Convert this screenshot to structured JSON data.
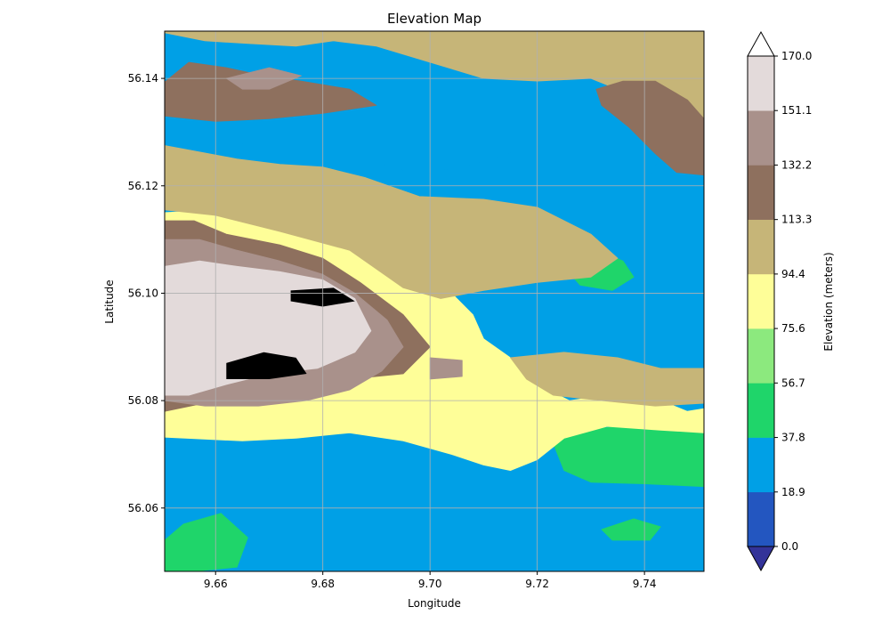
{
  "chart_data": {
    "type": "contour",
    "title": "Elevation Map",
    "xlabel": "Longitude",
    "ylabel": "Latitude",
    "xlim": [
      9.6505,
      9.7511
    ],
    "ylim": [
      56.0482,
      56.1488
    ],
    "x_ticks": [
      {
        "value": 9.66,
        "label": "9.66"
      },
      {
        "value": 9.68,
        "label": "9.68"
      },
      {
        "value": 9.7,
        "label": "9.70"
      },
      {
        "value": 9.72,
        "label": "9.72"
      },
      {
        "value": 9.74,
        "label": "9.74"
      }
    ],
    "y_ticks": [
      {
        "value": 56.06,
        "label": "56.06"
      },
      {
        "value": 56.08,
        "label": "56.08"
      },
      {
        "value": 56.1,
        "label": "56.10"
      },
      {
        "value": 56.12,
        "label": "56.12"
      },
      {
        "value": 56.14,
        "label": "56.14"
      }
    ],
    "grid": true,
    "colorbar": {
      "label": "Elevation (meters)",
      "levels": [
        0.0,
        18.9,
        37.8,
        56.7,
        75.6,
        94.4,
        113.3,
        132.2,
        151.1,
        170.0
      ],
      "tick_labels": [
        "0.0",
        "18.9",
        "37.8",
        "56.7",
        "75.6",
        "94.4",
        "113.3",
        "132.2",
        "151.1",
        "170.0"
      ],
      "colors": [
        "#2356c0",
        "#00a0e6",
        "#1fd56a",
        "#8ce97e",
        "#fefe98",
        "#c6b578",
        "#8e705e",
        "#a9918b",
        "#e3dada"
      ],
      "under_color": "#333399",
      "over_color": "#ffffff",
      "extend": "both"
    },
    "regions": [
      {
        "band": 1,
        "pts": [
          [
            9.6505,
            56.1288
          ],
          [
            9.654,
            56.13
          ],
          [
            9.662,
            56.1283
          ],
          [
            9.672,
            56.127
          ],
          [
            9.68,
            56.1275
          ],
          [
            9.688,
            56.125
          ],
          [
            9.698,
            56.122
          ],
          [
            9.708,
            56.124
          ],
          [
            9.718,
            56.127
          ],
          [
            9.73,
            56.129
          ],
          [
            9.74,
            56.1283
          ],
          [
            9.743,
            56.1255
          ],
          [
            9.74,
            56.1195
          ],
          [
            9.73,
            56.117
          ],
          [
            9.724,
            56.1135
          ],
          [
            9.72,
            56.1085
          ],
          [
            9.718,
            56.104
          ],
          [
            9.722,
            56.102
          ],
          [
            9.73,
            56.103
          ],
          [
            9.74,
            56.104
          ],
          [
            9.7511,
            56.1045
          ],
          [
            9.7511,
            56.0895
          ],
          [
            9.74,
            56.0905
          ],
          [
            9.73,
            56.0925
          ],
          [
            9.723,
            56.0935
          ],
          [
            9.712,
            56.096
          ],
          [
            9.7,
            56.104
          ],
          [
            9.695,
            56.108
          ],
          [
            9.685,
            56.112
          ],
          [
            9.678,
            56.1145
          ],
          [
            9.67,
            56.1155
          ],
          [
            9.66,
            56.117
          ],
          [
            9.6505,
            56.117
          ]
        ]
      },
      {
        "band": 1,
        "pts": [
          [
            9.6505,
            56.065
          ],
          [
            9.66,
            56.066
          ],
          [
            9.67,
            56.0655
          ],
          [
            9.68,
            56.064
          ],
          [
            9.69,
            56.0615
          ],
          [
            9.7,
            56.059
          ],
          [
            9.71,
            56.059
          ],
          [
            9.72,
            56.061
          ],
          [
            9.73,
            56.062
          ],
          [
            9.74,
            56.063
          ],
          [
            9.7511,
            56.063
          ],
          [
            9.7511,
            56.0482
          ],
          [
            9.6505,
            56.0482
          ]
        ]
      },
      {
        "band": 2,
        "pts": [
          [
            9.7285,
            56.0745
          ],
          [
            9.735,
            56.0752
          ],
          [
            9.744,
            56.0755
          ],
          [
            9.748,
            56.0748
          ],
          [
            9.7511,
            56.0752
          ],
          [
            9.7511,
            56.064
          ],
          [
            9.74,
            56.0645
          ],
          [
            9.73,
            56.0648
          ],
          [
            9.725,
            56.067
          ],
          [
            9.723,
            56.072
          ]
        ]
      },
      {
        "band": 2,
        "pts": [
          [
            9.724,
            56.106
          ],
          [
            9.73,
            56.1085
          ],
          [
            9.736,
            56.106
          ],
          [
            9.738,
            56.103
          ],
          [
            9.734,
            56.1005
          ],
          [
            9.728,
            56.1015
          ]
        ]
      },
      {
        "band": 2,
        "pts": [
          [
            9.6505,
            56.054
          ],
          [
            9.654,
            56.057
          ],
          [
            9.661,
            56.059
          ],
          [
            9.666,
            56.0545
          ],
          [
            9.664,
            56.049
          ],
          [
            9.656,
            56.0482
          ],
          [
            9.6505,
            56.0482
          ]
        ]
      },
      {
        "band": 2,
        "pts": [
          [
            9.732,
            56.056
          ],
          [
            9.738,
            56.058
          ],
          [
            9.743,
            56.0565
          ],
          [
            9.741,
            56.054
          ],
          [
            9.734,
            56.054
          ]
        ]
      },
      {
        "band": 4,
        "pts": [
          [
            9.6505,
            56.1487
          ],
          [
            9.656,
            56.1487
          ],
          [
            9.664,
            56.1478
          ],
          [
            9.672,
            56.147
          ],
          [
            9.679,
            56.1488
          ],
          [
            9.6505,
            56.1488
          ]
        ]
      },
      {
        "band": 4,
        "pts": [
          [
            9.6505,
            56.115
          ],
          [
            9.66,
            56.1155
          ],
          [
            9.67,
            56.114
          ],
          [
            9.68,
            56.1125
          ],
          [
            9.688,
            56.1095
          ],
          [
            9.696,
            56.106
          ],
          [
            9.703,
            56.101
          ],
          [
            9.708,
            56.096
          ],
          [
            9.71,
            56.0915
          ],
          [
            9.715,
            56.088
          ],
          [
            9.72,
            56.083
          ],
          [
            9.726,
            56.08
          ],
          [
            9.733,
            56.081
          ],
          [
            9.743,
            56.08
          ],
          [
            9.748,
            56.078
          ],
          [
            9.7511,
            56.0785
          ],
          [
            9.7511,
            56.074
          ],
          [
            9.743,
            56.0745
          ],
          [
            9.733,
            56.0752
          ],
          [
            9.725,
            56.073
          ],
          [
            9.72,
            56.069
          ],
          [
            9.715,
            56.067
          ],
          [
            9.71,
            56.068
          ],
          [
            9.704,
            56.07
          ],
          [
            9.695,
            56.0725
          ],
          [
            9.685,
            56.074
          ],
          [
            9.675,
            56.073
          ],
          [
            9.665,
            56.0725
          ],
          [
            9.6505,
            56.0732
          ]
        ]
      },
      {
        "band": 5,
        "pts": [
          [
            9.6505,
            56.1275
          ],
          [
            9.656,
            56.1265
          ],
          [
            9.664,
            56.125
          ],
          [
            9.672,
            56.124
          ],
          [
            9.68,
            56.1235
          ],
          [
            9.688,
            56.1215
          ],
          [
            9.698,
            56.118
          ],
          [
            9.71,
            56.1175
          ],
          [
            9.72,
            56.116
          ],
          [
            9.73,
            56.111
          ],
          [
            9.735,
            56.1065
          ],
          [
            9.73,
            56.103
          ],
          [
            9.72,
            56.102
          ],
          [
            9.71,
            56.1005
          ],
          [
            9.702,
            56.099
          ],
          [
            9.695,
            56.101
          ],
          [
            9.685,
            56.108
          ],
          [
            9.672,
            56.1115
          ],
          [
            9.66,
            56.1145
          ],
          [
            9.6505,
            56.1155
          ]
        ]
      },
      {
        "band": 5,
        "pts": [
          [
            9.715,
            56.088
          ],
          [
            9.725,
            56.089
          ],
          [
            9.735,
            56.088
          ],
          [
            9.743,
            56.086
          ],
          [
            9.7511,
            56.086
          ],
          [
            9.7511,
            56.0795
          ],
          [
            9.742,
            56.079
          ],
          [
            9.732,
            56.08
          ],
          [
            9.723,
            56.081
          ],
          [
            9.718,
            56.084
          ]
        ]
      },
      {
        "band": 5,
        "pts": [
          [
            9.6505,
            56.1485
          ],
          [
            9.658,
            56.147
          ],
          [
            9.666,
            56.1465
          ],
          [
            9.675,
            56.146
          ],
          [
            9.682,
            56.147
          ],
          [
            9.69,
            56.146
          ],
          [
            9.7,
            56.143
          ],
          [
            9.71,
            56.14
          ],
          [
            9.72,
            56.1395
          ],
          [
            9.73,
            56.14
          ],
          [
            9.735,
            56.138
          ],
          [
            9.74,
            56.134
          ],
          [
            9.746,
            56.13
          ],
          [
            9.7511,
            56.128
          ],
          [
            9.7511,
            56.1488
          ],
          [
            9.6505,
            56.1488
          ]
        ]
      },
      {
        "band": 6,
        "pts": [
          [
            9.6505,
            56.1393
          ],
          [
            9.655,
            56.143
          ],
          [
            9.662,
            56.142
          ],
          [
            9.669,
            56.1405
          ],
          [
            9.676,
            56.1395
          ],
          [
            9.685,
            56.138
          ],
          [
            9.69,
            56.135
          ],
          [
            9.68,
            56.1335
          ],
          [
            9.67,
            56.1325
          ],
          [
            9.66,
            56.132
          ],
          [
            9.6505,
            56.133
          ]
        ]
      },
      {
        "band": 6,
        "pts": [
          [
            9.731,
            56.138
          ],
          [
            9.736,
            56.1395
          ],
          [
            9.742,
            56.1395
          ],
          [
            9.748,
            56.136
          ],
          [
            9.7511,
            56.1325
          ],
          [
            9.7511,
            56.122
          ],
          [
            9.746,
            56.1225
          ],
          [
            9.742,
            56.126
          ],
          [
            9.737,
            56.131
          ],
          [
            9.732,
            56.135
          ]
        ]
      },
      {
        "band": 6,
        "pts": [
          [
            9.6505,
            56.1135
          ],
          [
            9.656,
            56.1135
          ],
          [
            9.662,
            56.111
          ],
          [
            9.672,
            56.109
          ],
          [
            9.68,
            56.1065
          ],
          [
            9.687,
            56.102
          ],
          [
            9.695,
            56.096
          ],
          [
            9.7,
            56.09
          ],
          [
            9.695,
            56.085
          ],
          [
            9.685,
            56.084
          ],
          [
            9.675,
            56.083
          ],
          [
            9.665,
            56.081
          ],
          [
            9.6505,
            56.078
          ]
        ]
      },
      {
        "band": 7,
        "pts": [
          [
            9.6505,
            56.11
          ],
          [
            9.657,
            56.11
          ],
          [
            9.664,
            56.108
          ],
          [
            9.672,
            56.106
          ],
          [
            9.68,
            56.1035
          ],
          [
            9.686,
            56.1
          ],
          [
            9.692,
            56.095
          ],
          [
            9.695,
            56.09
          ],
          [
            9.691,
            56.0855
          ],
          [
            9.685,
            56.082
          ],
          [
            9.677,
            56.08
          ],
          [
            9.668,
            56.079
          ],
          [
            9.658,
            56.079
          ],
          [
            9.6505,
            56.08
          ]
        ]
      },
      {
        "band": 7,
        "pts": [
          [
            9.7,
            56.088
          ],
          [
            9.706,
            56.0875
          ],
          [
            9.706,
            56.0845
          ],
          [
            9.7,
            56.084
          ]
        ]
      },
      {
        "band": 7,
        "pts": [
          [
            9.662,
            56.14
          ],
          [
            9.67,
            56.142
          ],
          [
            9.676,
            56.1405
          ],
          [
            9.67,
            56.138
          ],
          [
            9.665,
            56.138
          ]
        ]
      },
      {
        "band": 8,
        "pts": [
          [
            9.6505,
            56.105
          ],
          [
            9.657,
            56.106
          ],
          [
            9.664,
            56.105
          ],
          [
            9.672,
            56.104
          ],
          [
            9.68,
            56.1025
          ],
          [
            9.686,
            56.099
          ],
          [
            9.689,
            56.093
          ],
          [
            9.686,
            56.089
          ],
          [
            9.679,
            56.086
          ],
          [
            9.67,
            56.085
          ],
          [
            9.662,
            56.083
          ],
          [
            9.655,
            56.081
          ],
          [
            9.6505,
            56.081
          ]
        ]
      },
      {
        "band": 9,
        "pts": [
          [
            9.662,
            56.087
          ],
          [
            9.669,
            56.089
          ],
          [
            9.675,
            56.088
          ],
          [
            9.677,
            56.085
          ],
          [
            9.67,
            56.084
          ],
          [
            9.662,
            56.084
          ]
        ]
      },
      {
        "band": 9,
        "pts": [
          [
            9.674,
            56.1005
          ],
          [
            9.682,
            56.101
          ],
          [
            9.686,
            56.0985
          ],
          [
            9.68,
            56.0975
          ],
          [
            9.674,
            56.0985
          ]
        ]
      }
    ]
  }
}
